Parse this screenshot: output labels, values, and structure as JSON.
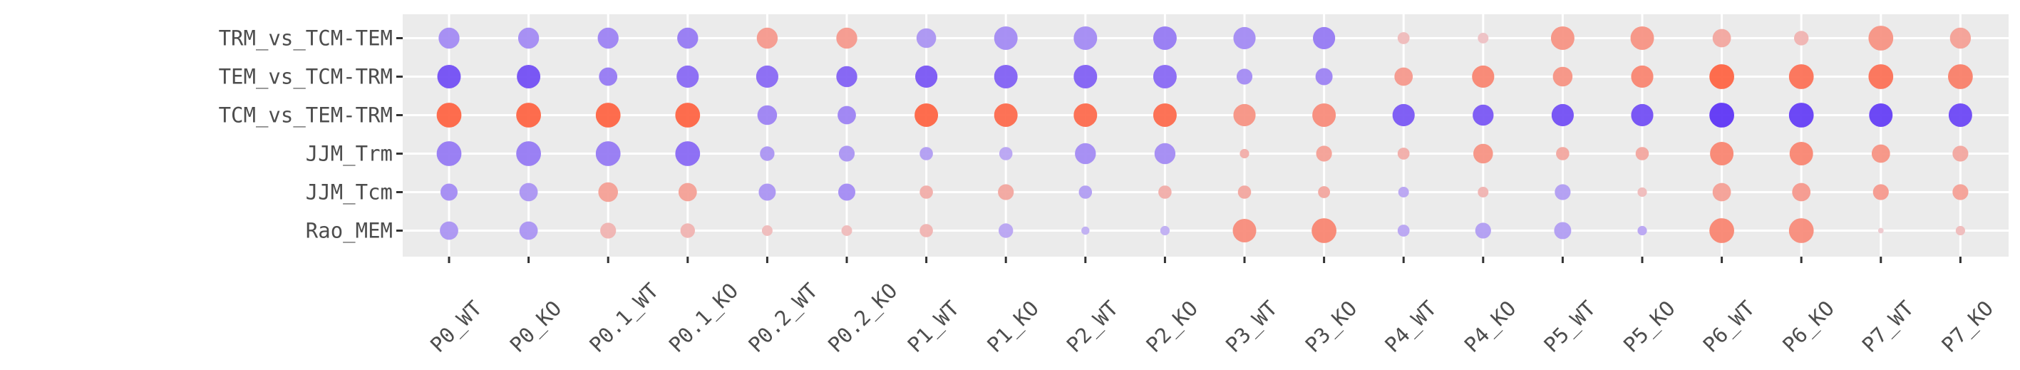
{
  "chart_data": {
    "type": "scatter",
    "subtype": "dot-plot",
    "title": "",
    "xlabel": "",
    "ylabel": "",
    "x_categories": [
      "P0_WT",
      "P0_KO",
      "P0.1_WT",
      "P0.1_KO",
      "P0.2_WT",
      "P0.2_KO",
      "P1_WT",
      "P1_KO",
      "P2_WT",
      "P2_KO",
      "P3_WT",
      "P3_KO",
      "P4_WT",
      "P4_KO",
      "P5_WT",
      "P5_KO",
      "P6_WT",
      "P6_KO",
      "P7_WT",
      "P7_KO"
    ],
    "y_categories": [
      "TRM_vs_TCM-TEM",
      "TEM_vs_TCM-TRM",
      "TCM_vs_TEM-TRM",
      "JJM_Trm",
      "JJM_Tcm",
      "Rao_MEM"
    ],
    "grid": true,
    "legend": "none",
    "colors": {
      "panel_bg": "#ebebeb",
      "grid": "#ffffff",
      "low": "#5a30f5",
      "mid": "#e8e0f0",
      "high": "#ff5a36",
      "axis_text": "#4d4d4d",
      "tick": "#333333"
    },
    "series": [
      {
        "row": "TRM_vs_TCM-TEM",
        "values": [
          -0.5,
          -0.5,
          -0.55,
          -0.6,
          0.55,
          0.55,
          -0.45,
          -0.5,
          -0.5,
          -0.6,
          -0.5,
          -0.6,
          0.3,
          0.25,
          0.6,
          0.6,
          0.45,
          0.35,
          0.6,
          0.5
        ],
        "sizes": [
          0.65,
          0.65,
          0.65,
          0.65,
          0.65,
          0.65,
          0.6,
          0.75,
          0.75,
          0.75,
          0.7,
          0.7,
          0.3,
          0.25,
          0.75,
          0.75,
          0.55,
          0.4,
          0.8,
          0.65
        ]
      },
      {
        "row": "TEM_vs_TCM-TRM",
        "values": [
          -0.85,
          -0.85,
          -0.6,
          -0.7,
          -0.7,
          -0.75,
          -0.8,
          -0.75,
          -0.75,
          -0.7,
          -0.5,
          -0.55,
          0.55,
          0.7,
          0.6,
          0.7,
          0.95,
          0.85,
          0.85,
          0.75
        ],
        "sizes": [
          0.75,
          0.75,
          0.55,
          0.7,
          0.7,
          0.65,
          0.7,
          0.75,
          0.75,
          0.75,
          0.45,
          0.5,
          0.55,
          0.7,
          0.6,
          0.7,
          0.8,
          0.8,
          0.8,
          0.8
        ]
      },
      {
        "row": "TCM_vs_TEM-TRM",
        "values": [
          0.95,
          0.95,
          0.95,
          0.95,
          -0.55,
          -0.55,
          0.95,
          0.9,
          0.9,
          0.9,
          0.6,
          0.65,
          -0.8,
          -0.8,
          -0.85,
          -0.85,
          -1.0,
          -0.95,
          -0.95,
          -0.9
        ],
        "sizes": [
          0.8,
          0.8,
          0.8,
          0.8,
          0.6,
          0.55,
          0.75,
          0.75,
          0.75,
          0.75,
          0.7,
          0.75,
          0.7,
          0.65,
          0.7,
          0.7,
          0.8,
          0.8,
          0.75,
          0.75
        ]
      },
      {
        "row": "JJM_Trm",
        "values": [
          -0.6,
          -0.6,
          -0.6,
          -0.7,
          -0.45,
          -0.45,
          -0.4,
          -0.35,
          -0.5,
          -0.5,
          0.4,
          0.5,
          0.4,
          0.6,
          0.45,
          0.45,
          0.7,
          0.7,
          0.6,
          0.45
        ],
        "sizes": [
          0.8,
          0.8,
          0.8,
          0.8,
          0.4,
          0.45,
          0.35,
          0.35,
          0.65,
          0.65,
          0.2,
          0.45,
          0.3,
          0.6,
          0.35,
          0.35,
          0.75,
          0.75,
          0.55,
          0.45
        ]
      },
      {
        "row": "JJM_Tcm",
        "values": [
          -0.5,
          -0.45,
          0.5,
          0.5,
          -0.45,
          -0.5,
          0.4,
          0.45,
          -0.4,
          0.4,
          0.45,
          0.45,
          -0.35,
          0.35,
          -0.4,
          0.3,
          0.5,
          0.55,
          0.55,
          0.5
        ],
        "sizes": [
          0.5,
          0.55,
          0.6,
          0.55,
          0.5,
          0.5,
          0.35,
          0.45,
          0.35,
          0.35,
          0.35,
          0.3,
          0.25,
          0.25,
          0.45,
          0.2,
          0.55,
          0.55,
          0.45,
          0.45
        ]
      },
      {
        "row": "Rao_MEM",
        "values": [
          -0.45,
          -0.45,
          0.35,
          0.35,
          0.3,
          0.3,
          0.35,
          -0.35,
          -0.3,
          -0.3,
          0.65,
          0.7,
          -0.35,
          -0.4,
          -0.4,
          -0.35,
          0.7,
          0.65,
          0.2,
          0.3
        ],
        "sizes": [
          0.55,
          0.55,
          0.45,
          0.4,
          0.25,
          0.25,
          0.35,
          0.4,
          0.15,
          0.2,
          0.75,
          0.8,
          0.3,
          0.45,
          0.5,
          0.2,
          0.8,
          0.8,
          0.05,
          0.2
        ]
      }
    ]
  }
}
